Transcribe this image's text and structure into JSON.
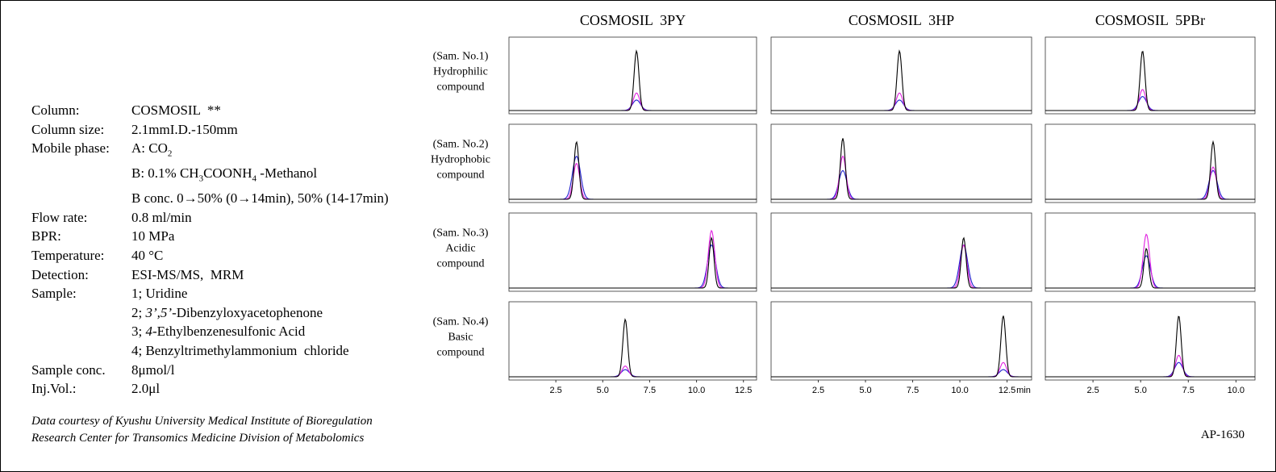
{
  "conditions": [
    {
      "key": "Column:",
      "lines": [
        [
          {
            "text": "COSMOSIL  **"
          }
        ]
      ]
    },
    {
      "key": "Column size:",
      "lines": [
        [
          {
            "text": "2.1mmI.D.-150mm"
          }
        ]
      ]
    },
    {
      "key": "Mobile phase:",
      "lines": [
        [
          {
            "text": "A: CO"
          },
          {
            "text": "2",
            "style": "sub"
          }
        ],
        [
          {
            "text": "B: 0.1% CH"
          },
          {
            "text": "3",
            "style": "sub"
          },
          {
            "text": "COONH"
          },
          {
            "text": "4",
            "style": "sub"
          },
          {
            "text": " -Methanol"
          }
        ],
        [
          {
            "text": "B conc. 0→50% (0→14min), 50% (14-17min)"
          }
        ]
      ]
    },
    {
      "key": "Flow rate:",
      "lines": [
        [
          {
            "text": "0.8 ml/min"
          }
        ]
      ]
    },
    {
      "key": "BPR:",
      "lines": [
        [
          {
            "text": "10 MPa"
          }
        ]
      ]
    },
    {
      "key": "Temperature:",
      "lines": [
        [
          {
            "text": "40 °C"
          }
        ]
      ]
    },
    {
      "key": "Detection:",
      "lines": [
        [
          {
            "text": "ESI-MS/MS,  MRM"
          }
        ]
      ]
    },
    {
      "key": "Sample:",
      "lines": [
        [
          {
            "text": "1; Uridine"
          }
        ],
        [
          {
            "text": "2; "
          },
          {
            "text": "3’,5’",
            "style": "i"
          },
          {
            "text": "-Dibenzyloxyacetophenone"
          }
        ],
        [
          {
            "text": "3; "
          },
          {
            "text": "4",
            "style": "i"
          },
          {
            "text": "-Ethylbenzenesulfonic Acid"
          }
        ],
        [
          {
            "text": "4; Benzyltrimethylammonium  chloride"
          }
        ]
      ]
    },
    {
      "key": "Sample conc.",
      "lines": [
        [
          {
            "text": "8μmol/l"
          }
        ]
      ]
    },
    {
      "key": "Inj.Vol.:",
      "lines": [
        [
          {
            "text": "2.0μl"
          }
        ]
      ]
    }
  ],
  "footer": [
    "Data courtesy  of  Kyushu University Medical Institute of Bioregulation",
    "Research Center for Transomics Medicine Division of Metabolomics"
  ],
  "code": "AP-1630",
  "chart_data": {
    "type": "chromatogram",
    "trace_colors": [
      "#000000",
      "#e020e0",
      "#2020d0"
    ],
    "columns": [
      {
        "title": "COSMOSIL  3PY",
        "xlim": [
          0,
          13.2
        ],
        "xticks": [
          2.5,
          {
            "value": 5,
            "label": "5.0"
          },
          7.5,
          {
            "value": 10,
            "label": "10.0"
          },
          12.5
        ]
      },
      {
        "title": "COSMOSIL  3HP",
        "xlim": [
          0,
          13.8
        ],
        "xticks": [
          2.5,
          {
            "value": 5,
            "label": "5.0"
          },
          7.5,
          {
            "value": 10,
            "label": "10.0"
          },
          12.5
        ],
        "unit": "min"
      },
      {
        "title": "COSMOSIL  5PBr",
        "xlim": [
          0,
          11
        ],
        "xticks": [
          2.5,
          {
            "value": 5,
            "label": "5.0"
          },
          7.5,
          {
            "value": 10,
            "label": "10.0"
          }
        ]
      }
    ],
    "rows": [
      {
        "label": [
          "(Sam. No.1)",
          "Hydrophilic",
          "compound"
        ],
        "peaks": [
          {
            "time": 6.8,
            "heights": [
              0.85,
              0.25,
              0.15
            ]
          },
          {
            "time": 6.8,
            "heights": [
              0.85,
              0.25,
              0.15
            ]
          },
          {
            "time": 5.1,
            "heights": [
              0.85,
              0.3,
              0.2
            ]
          }
        ]
      },
      {
        "label": [
          "(Sam. No.2)",
          "Hydrophobic",
          "compound"
        ],
        "peaks": [
          {
            "time": 3.6,
            "heights": [
              0.8,
              0.5,
              0.6
            ]
          },
          {
            "time": 3.8,
            "heights": [
              0.85,
              0.6,
              0.4
            ]
          },
          {
            "time": 8.8,
            "heights": [
              0.8,
              0.45,
              0.4
            ]
          }
        ]
      },
      {
        "label": [
          "(Sam. No.3)",
          "Acidic",
          "compound"
        ],
        "peaks": [
          {
            "time": 10.8,
            "heights": [
              0.7,
              0.8,
              0.6
            ]
          },
          {
            "time": 10.2,
            "heights": [
              0.7,
              0.6,
              0.6
            ]
          },
          {
            "time": 5.3,
            "heights": [
              0.55,
              0.75,
              0.45
            ]
          }
        ]
      },
      {
        "label": [
          "(Sam. No.4)",
          "Basic",
          "compound"
        ],
        "peaks": [
          {
            "time": 6.2,
            "heights": [
              0.8,
              0.15,
              0.1
            ]
          },
          {
            "time": 12.3,
            "heights": [
              0.85,
              0.2,
              0.1
            ]
          },
          {
            "time": 7.0,
            "heights": [
              0.85,
              0.3,
              0.2
            ]
          }
        ]
      }
    ]
  }
}
